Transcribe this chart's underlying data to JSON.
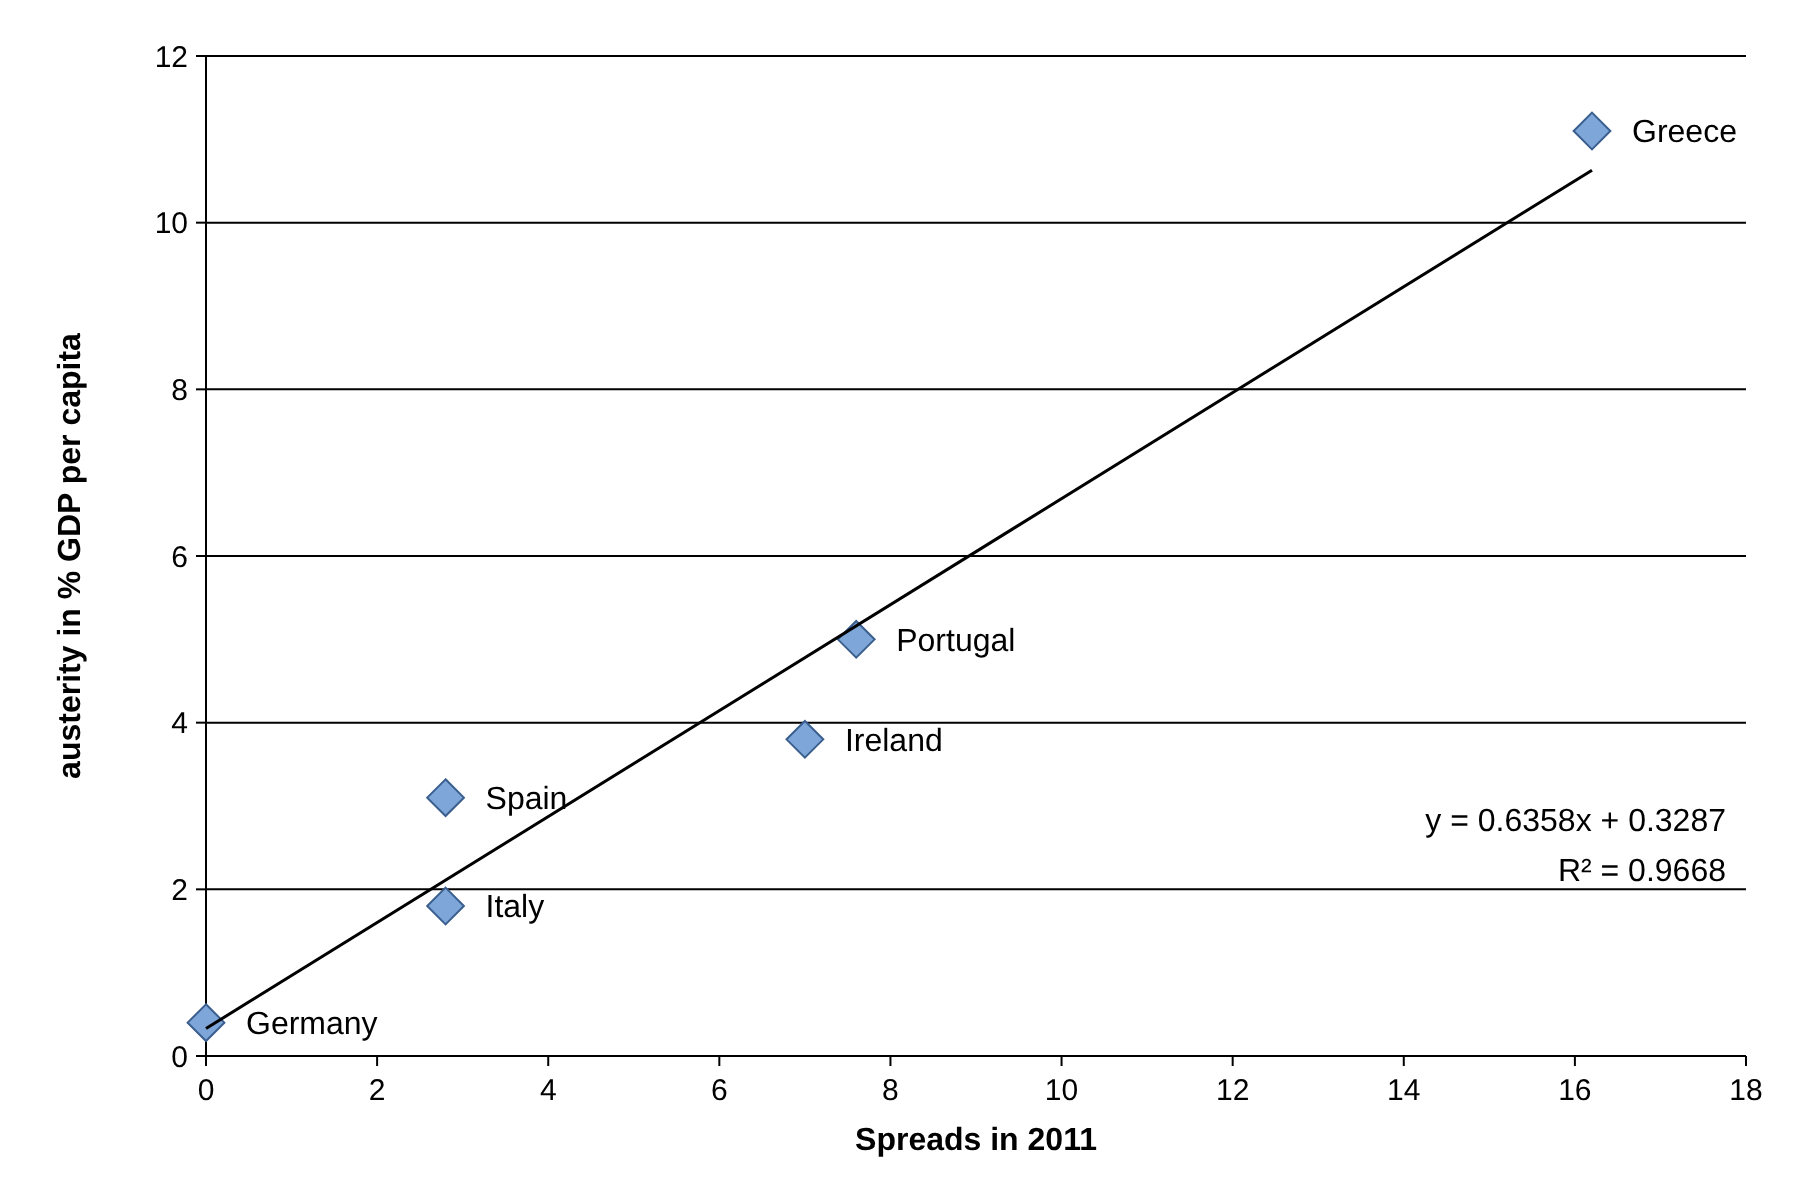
{
  "chart_data": {
    "type": "scatter",
    "xlabel": "Spreads in 2011",
    "ylabel": "austerity in % GDP per capita",
    "xlim": [
      0,
      18
    ],
    "xticks": [
      0,
      2,
      4,
      6,
      8,
      10,
      12,
      14,
      16,
      18
    ],
    "ylim": [
      0,
      12
    ],
    "yticks": [
      0,
      2,
      4,
      6,
      8,
      10,
      12
    ],
    "grid": "y",
    "series": [
      {
        "marker": "diamond",
        "color": "#7ea6d8",
        "x": [
          16.2,
          7.6,
          7.0,
          2.8,
          2.8,
          0
        ],
        "values": [
          11.1,
          5.0,
          3.8,
          3.1,
          1.8,
          0.4
        ]
      },
      {
        "type": "line",
        "color": "#000000",
        "x": [
          0,
          16.2
        ],
        "values": [
          0.33,
          10.63
        ]
      }
    ],
    "annotations": [
      {
        "text": "Greece",
        "x": 16.2,
        "y": 11.1
      },
      {
        "text": "Portugal",
        "x": 7.6,
        "y": 5.0
      },
      {
        "text": "Ireland",
        "x": 7.0,
        "y": 3.8
      },
      {
        "text": "Spain",
        "x": 2.8,
        "y": 3.1
      },
      {
        "text": "Italy",
        "x": 2.8,
        "y": 1.8
      },
      {
        "text": "Germany",
        "x": 0,
        "y": 0.4
      },
      "y = 0.6358x + 0.3287",
      "R² = 0.9668"
    ]
  }
}
